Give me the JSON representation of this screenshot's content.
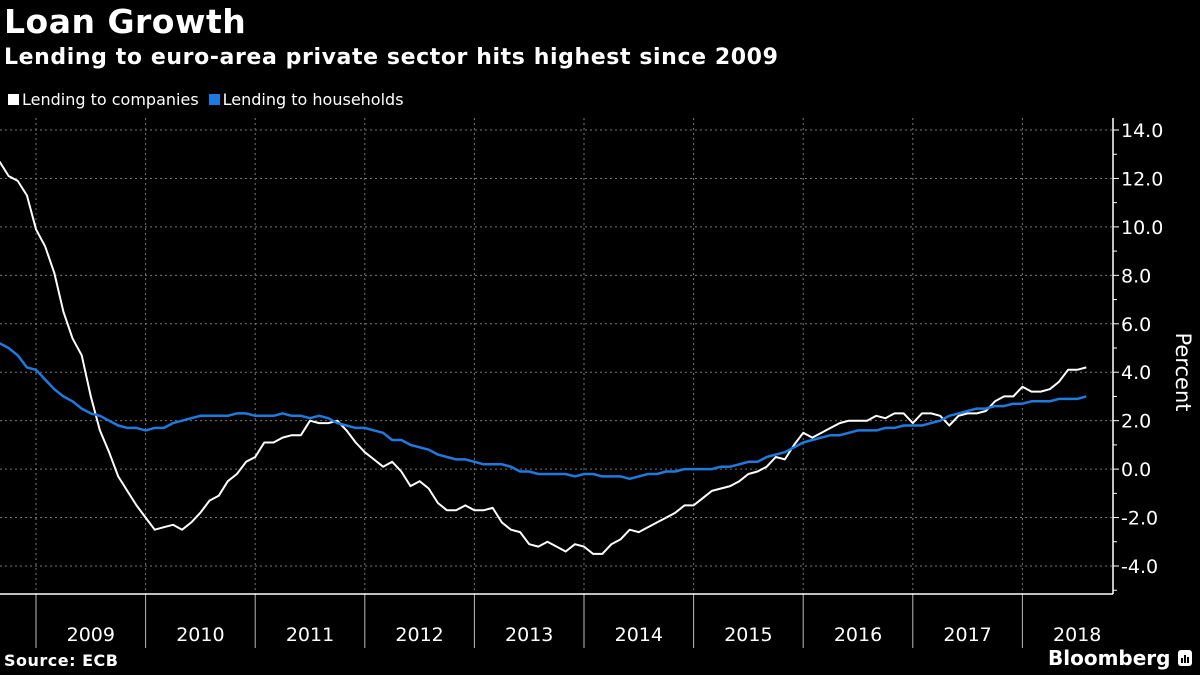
{
  "header": {
    "title": "Loan Growth",
    "subtitle": "Lending to euro-area private sector hits highest since 2009"
  },
  "footer": {
    "source": "Source: ECB",
    "brand": "Bloomberg"
  },
  "colors": {
    "background": "#000000",
    "companies": "#ffffff",
    "households": "#1f7ae0",
    "grid": "#777777"
  },
  "chart_data": {
    "type": "line",
    "title": "Loan Growth",
    "subtitle": "Lending to euro-area private sector hits highest since 2009",
    "ylabel": "Percent",
    "xlabel": "",
    "ylim": [
      -5,
      14.5
    ],
    "yticks": [
      14.0,
      12.0,
      10.0,
      8.0,
      6.0,
      4.0,
      2.0,
      0.0,
      -2.0,
      -4.0
    ],
    "ytick_labels": [
      "14.0",
      "12.0",
      "10.0",
      "8.0",
      "6.0",
      "4.0",
      "2.0",
      "0.0",
      "-2.0",
      "-4.0"
    ],
    "xtick_labels": [
      "2009",
      "2010",
      "2011",
      "2012",
      "2013",
      "2014",
      "2015",
      "2016",
      "2017",
      "2018"
    ],
    "x_start": "2008-09",
    "x_frequency": "monthly",
    "grid": true,
    "legend_position": "top-left",
    "series": [
      {
        "name": "Lending to companies",
        "color": "#ffffff",
        "values": [
          12.7,
          12.1,
          11.9,
          11.3,
          9.9,
          9.2,
          8.1,
          6.5,
          5.4,
          4.7,
          3.0,
          1.6,
          0.7,
          -0.3,
          -0.9,
          -1.5,
          -2.0,
          -2.5,
          -2.4,
          -2.3,
          -2.5,
          -2.2,
          -1.8,
          -1.3,
          -1.1,
          -0.5,
          -0.2,
          0.3,
          0.5,
          1.1,
          1.1,
          1.3,
          1.4,
          1.4,
          2.0,
          1.9,
          1.9,
          2.0,
          1.6,
          1.1,
          0.7,
          0.4,
          0.1,
          0.3,
          -0.1,
          -0.7,
          -0.5,
          -0.8,
          -1.4,
          -1.7,
          -1.7,
          -1.5,
          -1.7,
          -1.7,
          -1.6,
          -2.2,
          -2.5,
          -2.6,
          -3.1,
          -3.2,
          -3.0,
          -3.2,
          -3.4,
          -3.1,
          -3.2,
          -3.5,
          -3.5,
          -3.1,
          -2.9,
          -2.5,
          -2.6,
          -2.4,
          -2.2,
          -2.0,
          -1.8,
          -1.5,
          -1.5,
          -1.2,
          -0.9,
          -0.8,
          -0.7,
          -0.5,
          -0.2,
          -0.1,
          0.1,
          0.5,
          0.4,
          1.0,
          1.5,
          1.3,
          1.5,
          1.7,
          1.9,
          2.0,
          2.0,
          2.0,
          2.2,
          2.1,
          2.3,
          2.3,
          1.9,
          2.3,
          2.3,
          2.2,
          1.8,
          2.2,
          2.3,
          2.3,
          2.4,
          2.8,
          3.0,
          3.0,
          3.4,
          3.2,
          3.2,
          3.3,
          3.6,
          4.1,
          4.1,
          4.2
        ]
      },
      {
        "name": "Lending to households",
        "color": "#1f7ae0",
        "values": [
          5.2,
          5.0,
          4.7,
          4.2,
          4.1,
          3.7,
          3.3,
          3.0,
          2.8,
          2.5,
          2.3,
          2.2,
          2.0,
          1.8,
          1.7,
          1.7,
          1.6,
          1.7,
          1.7,
          1.9,
          2.0,
          2.1,
          2.2,
          2.2,
          2.2,
          2.2,
          2.3,
          2.3,
          2.2,
          2.2,
          2.2,
          2.3,
          2.2,
          2.2,
          2.1,
          2.2,
          2.1,
          1.9,
          1.8,
          1.7,
          1.7,
          1.6,
          1.5,
          1.2,
          1.2,
          1.0,
          0.9,
          0.8,
          0.6,
          0.5,
          0.4,
          0.4,
          0.3,
          0.2,
          0.2,
          0.2,
          0.1,
          -0.1,
          -0.1,
          -0.2,
          -0.2,
          -0.2,
          -0.2,
          -0.3,
          -0.2,
          -0.2,
          -0.3,
          -0.3,
          -0.3,
          -0.4,
          -0.3,
          -0.2,
          -0.2,
          -0.1,
          -0.1,
          0.0,
          0.0,
          0.0,
          0.0,
          0.1,
          0.1,
          0.2,
          0.3,
          0.3,
          0.5,
          0.6,
          0.7,
          0.9,
          1.1,
          1.2,
          1.3,
          1.4,
          1.4,
          1.5,
          1.6,
          1.6,
          1.6,
          1.7,
          1.7,
          1.8,
          1.8,
          1.8,
          1.9,
          2.0,
          2.2,
          2.3,
          2.4,
          2.5,
          2.5,
          2.6,
          2.6,
          2.7,
          2.7,
          2.8,
          2.8,
          2.8,
          2.9,
          2.9,
          2.9,
          3.0
        ]
      }
    ]
  }
}
